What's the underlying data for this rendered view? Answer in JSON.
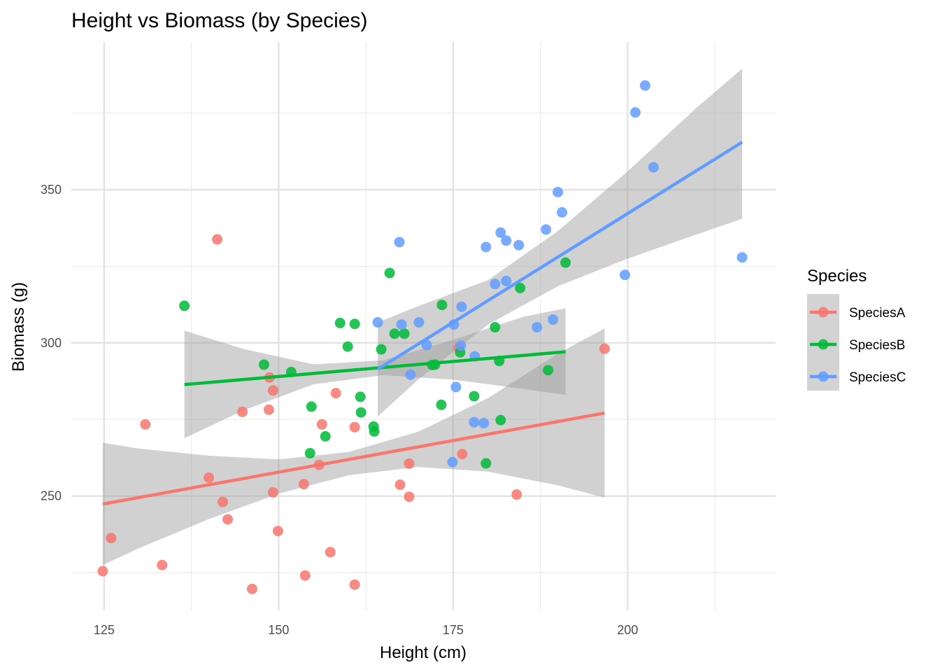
{
  "chart_data": {
    "type": "scatter",
    "title": "Height vs Biomass (by Species)",
    "xlabel": "Height (cm)",
    "ylabel": "Biomass (g)",
    "xlim": [
      120.3,
      221.2
    ],
    "ylim": [
      212.7,
      398.2
    ],
    "x_ticks": [
      125,
      150,
      175,
      200
    ],
    "x_tick_labels": [
      "125",
      "150",
      "175",
      "200"
    ],
    "x_minor_ticks": [
      137.5,
      162.5,
      187.5,
      212.5
    ],
    "y_ticks": [
      250,
      300,
      350
    ],
    "y_tick_labels": [
      "250",
      "300",
      "350"
    ],
    "y_minor_ticks": [
      225,
      275,
      325,
      375
    ],
    "grid": true,
    "legend": {
      "title": "Species",
      "position": "right"
    },
    "series": [
      {
        "name": "SpeciesA",
        "color": "#F8766D",
        "points": [
          [
            124.8,
            225.5
          ],
          [
            126.0,
            236.3
          ],
          [
            130.9,
            273.4
          ],
          [
            133.3,
            227.5
          ],
          [
            140.0,
            256.0
          ],
          [
            141.2,
            333.8
          ],
          [
            142.0,
            248.1
          ],
          [
            142.7,
            242.4
          ],
          [
            144.8,
            277.5
          ],
          [
            146.2,
            219.7
          ],
          [
            148.6,
            278.2
          ],
          [
            148.7,
            288.7
          ],
          [
            149.2,
            284.5
          ],
          [
            149.2,
            251.2
          ],
          [
            149.9,
            238.6
          ],
          [
            153.6,
            253.9
          ],
          [
            153.8,
            224.1
          ],
          [
            155.8,
            260.2
          ],
          [
            156.2,
            273.4
          ],
          [
            157.4,
            231.7
          ],
          [
            158.2,
            283.6
          ],
          [
            160.9,
            272.5
          ],
          [
            160.9,
            221.1
          ],
          [
            167.4,
            253.7
          ],
          [
            168.7,
            260.6
          ],
          [
            168.7,
            249.8
          ],
          [
            175.8,
            298.4
          ],
          [
            176.3,
            263.7
          ],
          [
            184.1,
            250.5
          ],
          [
            196.7,
            298.1
          ]
        ],
        "fit": {
          "x": [
            124.8,
            196.7
          ],
          "y": [
            247.4,
            277.1
          ]
        },
        "ci": {
          "x": [
            124.8,
            130,
            140,
            150,
            160,
            170,
            180,
            190,
            196.7
          ],
          "lower": [
            227.5,
            233.0,
            242.5,
            250.8,
            256.8,
            259.5,
            258.0,
            253.5,
            249.5
          ],
          "upper": [
            267.4,
            265.5,
            263.2,
            262.0,
            264.4,
            271.0,
            282.0,
            296.5,
            304.7
          ]
        }
      },
      {
        "name": "SpeciesB",
        "color": "#00BA38",
        "points": [
          [
            136.5,
            312.1
          ],
          [
            147.9,
            292.9
          ],
          [
            151.8,
            290.5
          ],
          [
            154.5,
            264.0
          ],
          [
            154.7,
            279.2
          ],
          [
            156.7,
            269.5
          ],
          [
            158.8,
            306.5
          ],
          [
            159.9,
            298.8
          ],
          [
            160.9,
            306.2
          ],
          [
            161.7,
            282.4
          ],
          [
            161.8,
            277.3
          ],
          [
            163.6,
            272.7
          ],
          [
            163.7,
            271.1
          ],
          [
            164.7,
            297.9
          ],
          [
            165.9,
            322.8
          ],
          [
            166.6,
            303.0
          ],
          [
            168.0,
            303.0
          ],
          [
            172.0,
            292.8
          ],
          [
            172.4,
            292.9
          ],
          [
            173.3,
            279.8
          ],
          [
            173.4,
            312.4
          ],
          [
            176.0,
            296.9
          ],
          [
            178.0,
            282.6
          ],
          [
            179.7,
            260.7
          ],
          [
            181.0,
            305.1
          ],
          [
            181.6,
            294.1
          ],
          [
            181.8,
            274.8
          ],
          [
            184.6,
            317.9
          ],
          [
            188.6,
            291.1
          ],
          [
            191.1,
            326.2
          ]
        ],
        "fit": {
          "x": [
            136.5,
            191.1
          ],
          "y": [
            286.4,
            297.1
          ]
        },
        "ci": {
          "x": [
            136.5,
            145,
            155,
            165,
            175,
            185,
            191.1
          ],
          "lower": [
            268.9,
            278.0,
            286.5,
            289.5,
            288.0,
            285.0,
            283.0
          ],
          "upper": [
            304.0,
            298.0,
            293.0,
            294.3,
            301.0,
            308.5,
            311.3
          ]
        }
      },
      {
        "name": "SpeciesC",
        "color": "#619CFF",
        "points": [
          [
            164.2,
            306.7
          ],
          [
            167.3,
            332.9
          ],
          [
            167.6,
            306.0
          ],
          [
            168.9,
            289.6
          ],
          [
            170.1,
            306.7
          ],
          [
            171.2,
            299.3
          ],
          [
            174.9,
            261.1
          ],
          [
            175.1,
            306.0
          ],
          [
            175.4,
            285.6
          ],
          [
            176.1,
            299.1
          ],
          [
            176.2,
            311.8
          ],
          [
            178.0,
            274.1
          ],
          [
            178.1,
            295.6
          ],
          [
            179.4,
            273.8
          ],
          [
            179.7,
            331.3
          ],
          [
            181.0,
            319.2
          ],
          [
            181.8,
            336.0
          ],
          [
            182.6,
            333.4
          ],
          [
            182.6,
            320.2
          ],
          [
            184.4,
            331.9
          ],
          [
            187.0,
            305.1
          ],
          [
            188.3,
            337.0
          ],
          [
            189.3,
            307.6
          ],
          [
            190.0,
            349.2
          ],
          [
            190.6,
            342.6
          ],
          [
            199.6,
            322.2
          ],
          [
            201.1,
            375.2
          ],
          [
            202.5,
            384.0
          ],
          [
            203.7,
            357.3
          ],
          [
            216.4,
            327.9
          ]
        ],
        "fit": {
          "x": [
            164.2,
            216.4
          ],
          "y": [
            291.4,
            365.5
          ]
        },
        "ci": {
          "x": [
            164.2,
            170,
            180,
            190,
            200,
            210,
            216.4
          ],
          "lower": [
            276.0,
            288.0,
            306.0,
            318.5,
            327.5,
            335.5,
            340.5
          ],
          "upper": [
            306.7,
            312.0,
            320.5,
            336.5,
            356.0,
            377.0,
            389.5
          ]
        }
      }
    ]
  }
}
